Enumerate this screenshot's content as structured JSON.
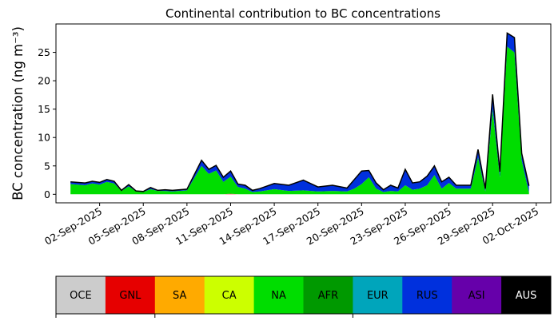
{
  "chart_data": {
    "type": "area",
    "stacked": true,
    "title": "Continental contribution to BC concentrations",
    "ylabel": "BC concentration (ng m⁻³)",
    "xlabel": "",
    "x_range": [
      "2025-08-30",
      "2025-10-03"
    ],
    "ylim": [
      -1.5,
      30
    ],
    "yticks": [
      0,
      5,
      10,
      15,
      20,
      25
    ],
    "xticks": [
      "02-Sep-2025",
      "05-Sep-2025",
      "08-Sep-2025",
      "11-Sep-2025",
      "14-Sep-2025",
      "17-Sep-2025",
      "20-Sep-2025",
      "23-Sep-2025",
      "26-Sep-2025",
      "29-Sep-2025",
      "02-Oct-2025"
    ],
    "x": [
      "2025-08-31",
      "2025-09-01",
      "2025-09-01T12",
      "2025-09-02",
      "2025-09-02T12",
      "2025-09-03",
      "2025-09-03T12",
      "2025-09-04",
      "2025-09-04T12",
      "2025-09-05",
      "2025-09-05T12",
      "2025-09-06",
      "2025-09-06T12",
      "2025-09-07",
      "2025-09-08",
      "2025-09-09",
      "2025-09-09T12",
      "2025-09-10",
      "2025-09-10T12",
      "2025-09-11",
      "2025-09-11T12",
      "2025-09-12",
      "2025-09-12T12",
      "2025-09-13",
      "2025-09-14",
      "2025-09-15",
      "2025-09-16",
      "2025-09-17",
      "2025-09-18",
      "2025-09-19",
      "2025-09-19T12",
      "2025-09-20",
      "2025-09-20T12",
      "2025-09-21",
      "2025-09-21T12",
      "2025-09-22",
      "2025-09-22T12",
      "2025-09-23",
      "2025-09-23T12",
      "2025-09-24",
      "2025-09-24T12",
      "2025-09-25",
      "2025-09-25T12",
      "2025-09-26",
      "2025-09-26T12",
      "2025-09-27",
      "2025-09-27T12",
      "2025-09-28",
      "2025-09-28T12",
      "2025-09-29",
      "2025-09-29T12",
      "2025-09-30",
      "2025-09-30T12",
      "2025-10-01",
      "2025-10-01T12"
    ],
    "series": [
      {
        "name": "OCE",
        "color": "#cccccc",
        "values": [
          0,
          0,
          0,
          0,
          0,
          0,
          0,
          0,
          0,
          0,
          0,
          0,
          0,
          0,
          0,
          0,
          0,
          0,
          0,
          0,
          0,
          0,
          0,
          0,
          0,
          0,
          0,
          0,
          0,
          0,
          0,
          0,
          0,
          0,
          0,
          0,
          0,
          0,
          0,
          0,
          0,
          0,
          0,
          0,
          0,
          0,
          0,
          0,
          0,
          0,
          0,
          0,
          0,
          0,
          0
        ]
      },
      {
        "name": "GNL",
        "color": "#e60000",
        "values": [
          0,
          0,
          0,
          0,
          0,
          0,
          0,
          0,
          0,
          0,
          0,
          0,
          0,
          0,
          0,
          0,
          0,
          0,
          0,
          0.1,
          0,
          0,
          0,
          0,
          0,
          0,
          0,
          0,
          0,
          0,
          0,
          0,
          0,
          0,
          0,
          0,
          0,
          0,
          0,
          0,
          0,
          0,
          0,
          0,
          0,
          0,
          0,
          0,
          0,
          0,
          0,
          0,
          0,
          0,
          0
        ]
      },
      {
        "name": "SA",
        "color": "#ffaa00",
        "values": [
          0,
          0,
          0,
          0,
          0,
          0,
          0,
          0,
          0,
          0,
          0,
          0,
          0,
          0,
          0,
          0,
          0,
          0,
          0,
          0,
          0,
          0,
          0,
          0,
          0,
          0,
          0,
          0,
          0,
          0,
          0,
          0,
          0,
          0,
          0,
          0,
          0,
          0,
          0,
          0,
          0,
          0,
          0,
          0,
          0,
          0,
          0,
          0,
          0,
          0,
          0,
          0,
          0,
          0,
          0
        ]
      },
      {
        "name": "CA",
        "color": "#ccff00",
        "values": [
          0,
          0,
          0,
          0,
          0,
          0,
          0,
          0,
          0,
          0,
          0,
          0,
          0,
          0,
          0,
          0,
          0,
          0,
          0,
          0,
          0,
          0,
          0,
          0,
          0,
          0,
          0,
          0,
          0,
          0,
          0,
          0,
          0,
          0,
          0,
          0,
          0,
          0,
          0,
          0,
          0,
          0,
          0,
          0,
          0,
          0,
          0,
          0,
          0,
          0,
          0,
          0,
          0,
          0,
          0
        ]
      },
      {
        "name": "NA",
        "color": "#00dd00",
        "values": [
          1.8,
          1.6,
          1.9,
          1.7,
          2.2,
          1.9,
          0.6,
          1.4,
          0.5,
          0.4,
          0.9,
          0.6,
          0.6,
          0.5,
          0.7,
          5.0,
          3.6,
          4.2,
          2.2,
          3.0,
          1.3,
          1.0,
          0.4,
          0.5,
          0.9,
          0.6,
          0.7,
          0.5,
          0.6,
          0.5,
          1.0,
          1.8,
          3.0,
          1.0,
          0.4,
          0.6,
          0.5,
          1.6,
          0.8,
          1.0,
          1.6,
          3.4,
          1.0,
          2.0,
          1.0,
          1.0,
          1.0,
          6.5,
          0.5,
          15.0,
          3.0,
          26.0,
          25.0,
          6.0,
          0.3
        ]
      },
      {
        "name": "AFR",
        "color": "#009900",
        "values": [
          0,
          0,
          0,
          0,
          0,
          0,
          0,
          0,
          0,
          0,
          0,
          0,
          0,
          0,
          0,
          0,
          0,
          0,
          0,
          0,
          0,
          0,
          0,
          0,
          0,
          0,
          0,
          0,
          0,
          0,
          0,
          0,
          0,
          0,
          0,
          0,
          0,
          0,
          0,
          0,
          0,
          0,
          0,
          0,
          0,
          0,
          0,
          0,
          0,
          0,
          0,
          0,
          0,
          0,
          0
        ]
      },
      {
        "name": "EUR",
        "color": "#00a5bb",
        "values": [
          0,
          0,
          0,
          0,
          0,
          0,
          0,
          0,
          0,
          0,
          0,
          0,
          0,
          0,
          0,
          0,
          0,
          0,
          0,
          0,
          0,
          0,
          0,
          0,
          0,
          0,
          0,
          0,
          0,
          0,
          0,
          0,
          0,
          0,
          0,
          0,
          0,
          0,
          0,
          0,
          0,
          0,
          0,
          0,
          0,
          0,
          0,
          0,
          0,
          0,
          0,
          0,
          0,
          0,
          0
        ]
      },
      {
        "name": "RUS",
        "color": "#0030dd",
        "values": [
          0.4,
          0.4,
          0.4,
          0.4,
          0.4,
          0.4,
          0.1,
          0.3,
          0.1,
          0.1,
          0.3,
          0.1,
          0.2,
          0.2,
          0.2,
          1.0,
          0.8,
          0.9,
          0.8,
          1.0,
          0.5,
          0.6,
          0.3,
          0.5,
          1.0,
          1.0,
          1.8,
          0.8,
          1.0,
          0.6,
          1.6,
          2.3,
          1.2,
          1.0,
          0.4,
          1.0,
          0.6,
          2.8,
          1.2,
          1.2,
          1.6,
          1.6,
          1.2,
          1.0,
          0.6,
          0.6,
          0.6,
          1.4,
          0.5,
          2.6,
          1.0,
          2.4,
          2.6,
          1.2,
          1.2
        ]
      },
      {
        "name": "ASI",
        "color": "#6600aa",
        "values": [
          0,
          0,
          0,
          0,
          0,
          0,
          0,
          0,
          0,
          0,
          0,
          0,
          0,
          0,
          0,
          0,
          0,
          0,
          0,
          0,
          0,
          0,
          0,
          0,
          0,
          0,
          0,
          0,
          0,
          0,
          0,
          0,
          0,
          0,
          0,
          0,
          0,
          0,
          0,
          0,
          0,
          0,
          0,
          0,
          0,
          0,
          0,
          0,
          0,
          0,
          0,
          0,
          0,
          0,
          0
        ]
      },
      {
        "name": "AUS",
        "color": "#000000",
        "values": [
          0,
          0,
          0,
          0,
          0,
          0,
          0,
          0,
          0,
          0,
          0,
          0,
          0,
          0,
          0,
          0,
          0,
          0,
          0,
          0,
          0,
          0,
          0,
          0,
          0,
          0,
          0,
          0,
          0,
          0,
          0,
          0,
          0,
          0,
          0,
          0,
          0,
          0,
          0,
          0,
          0,
          0,
          0,
          0,
          0,
          0,
          0,
          0,
          0,
          0,
          0,
          0,
          0,
          0,
          0
        ]
      }
    ],
    "legend": {
      "placement": "bottom",
      "entries": [
        {
          "label": "OCE",
          "color": "#cccccc",
          "text_color": "#000000"
        },
        {
          "label": "GNL",
          "color": "#e60000",
          "text_color": "#000000"
        },
        {
          "label": "SA",
          "color": "#ffaa00",
          "text_color": "#000000"
        },
        {
          "label": "CA",
          "color": "#ccff00",
          "text_color": "#000000"
        },
        {
          "label": "NA",
          "color": "#00dd00",
          "text_color": "#000000"
        },
        {
          "label": "AFR",
          "color": "#009900",
          "text_color": "#000000"
        },
        {
          "label": "EUR",
          "color": "#00a5bb",
          "text_color": "#000000"
        },
        {
          "label": "RUS",
          "color": "#0030dd",
          "text_color": "#000000"
        },
        {
          "label": "ASI",
          "color": "#6600aa",
          "text_color": "#000000"
        },
        {
          "label": "AUS",
          "color": "#000000",
          "text_color": "#ffffff"
        }
      ]
    }
  }
}
